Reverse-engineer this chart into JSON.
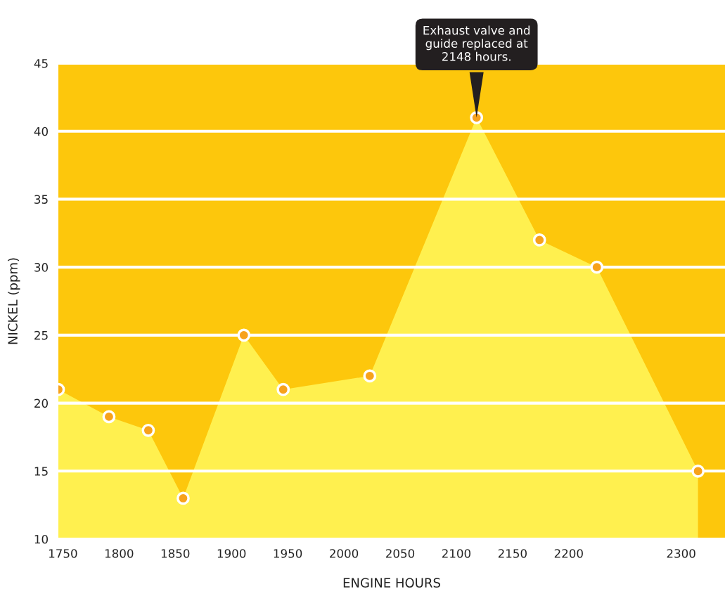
{
  "chart_data": {
    "type": "area",
    "xlabel": "ENGINE HOURS",
    "ylabel": "NICKEL (ppm)",
    "x": [
      1746,
      1791,
      1826,
      1857,
      1911,
      1946,
      2023,
      2118,
      2174,
      2225,
      2315
    ],
    "series": [
      {
        "color": "#fff04f",
        "values": [
          21,
          19,
          18,
          13,
          25,
          21,
          22,
          41,
          32,
          30,
          15
        ]
      }
    ],
    "xlim": [
      1746,
      2339
    ],
    "ylim": [
      10,
      45
    ],
    "xticks": [
      1750,
      1800,
      1850,
      1900,
      1950,
      2000,
      2050,
      2100,
      2150,
      2200,
      2300
    ],
    "yticks": [
      10,
      15,
      20,
      25,
      30,
      35,
      40,
      45
    ],
    "grid": "y",
    "marker": "circle",
    "annotations": [
      {
        "text": "Exhaust valve and\nguide replaced at\n2148 hours.",
        "x": 2118,
        "y": 41
      }
    ]
  }
}
